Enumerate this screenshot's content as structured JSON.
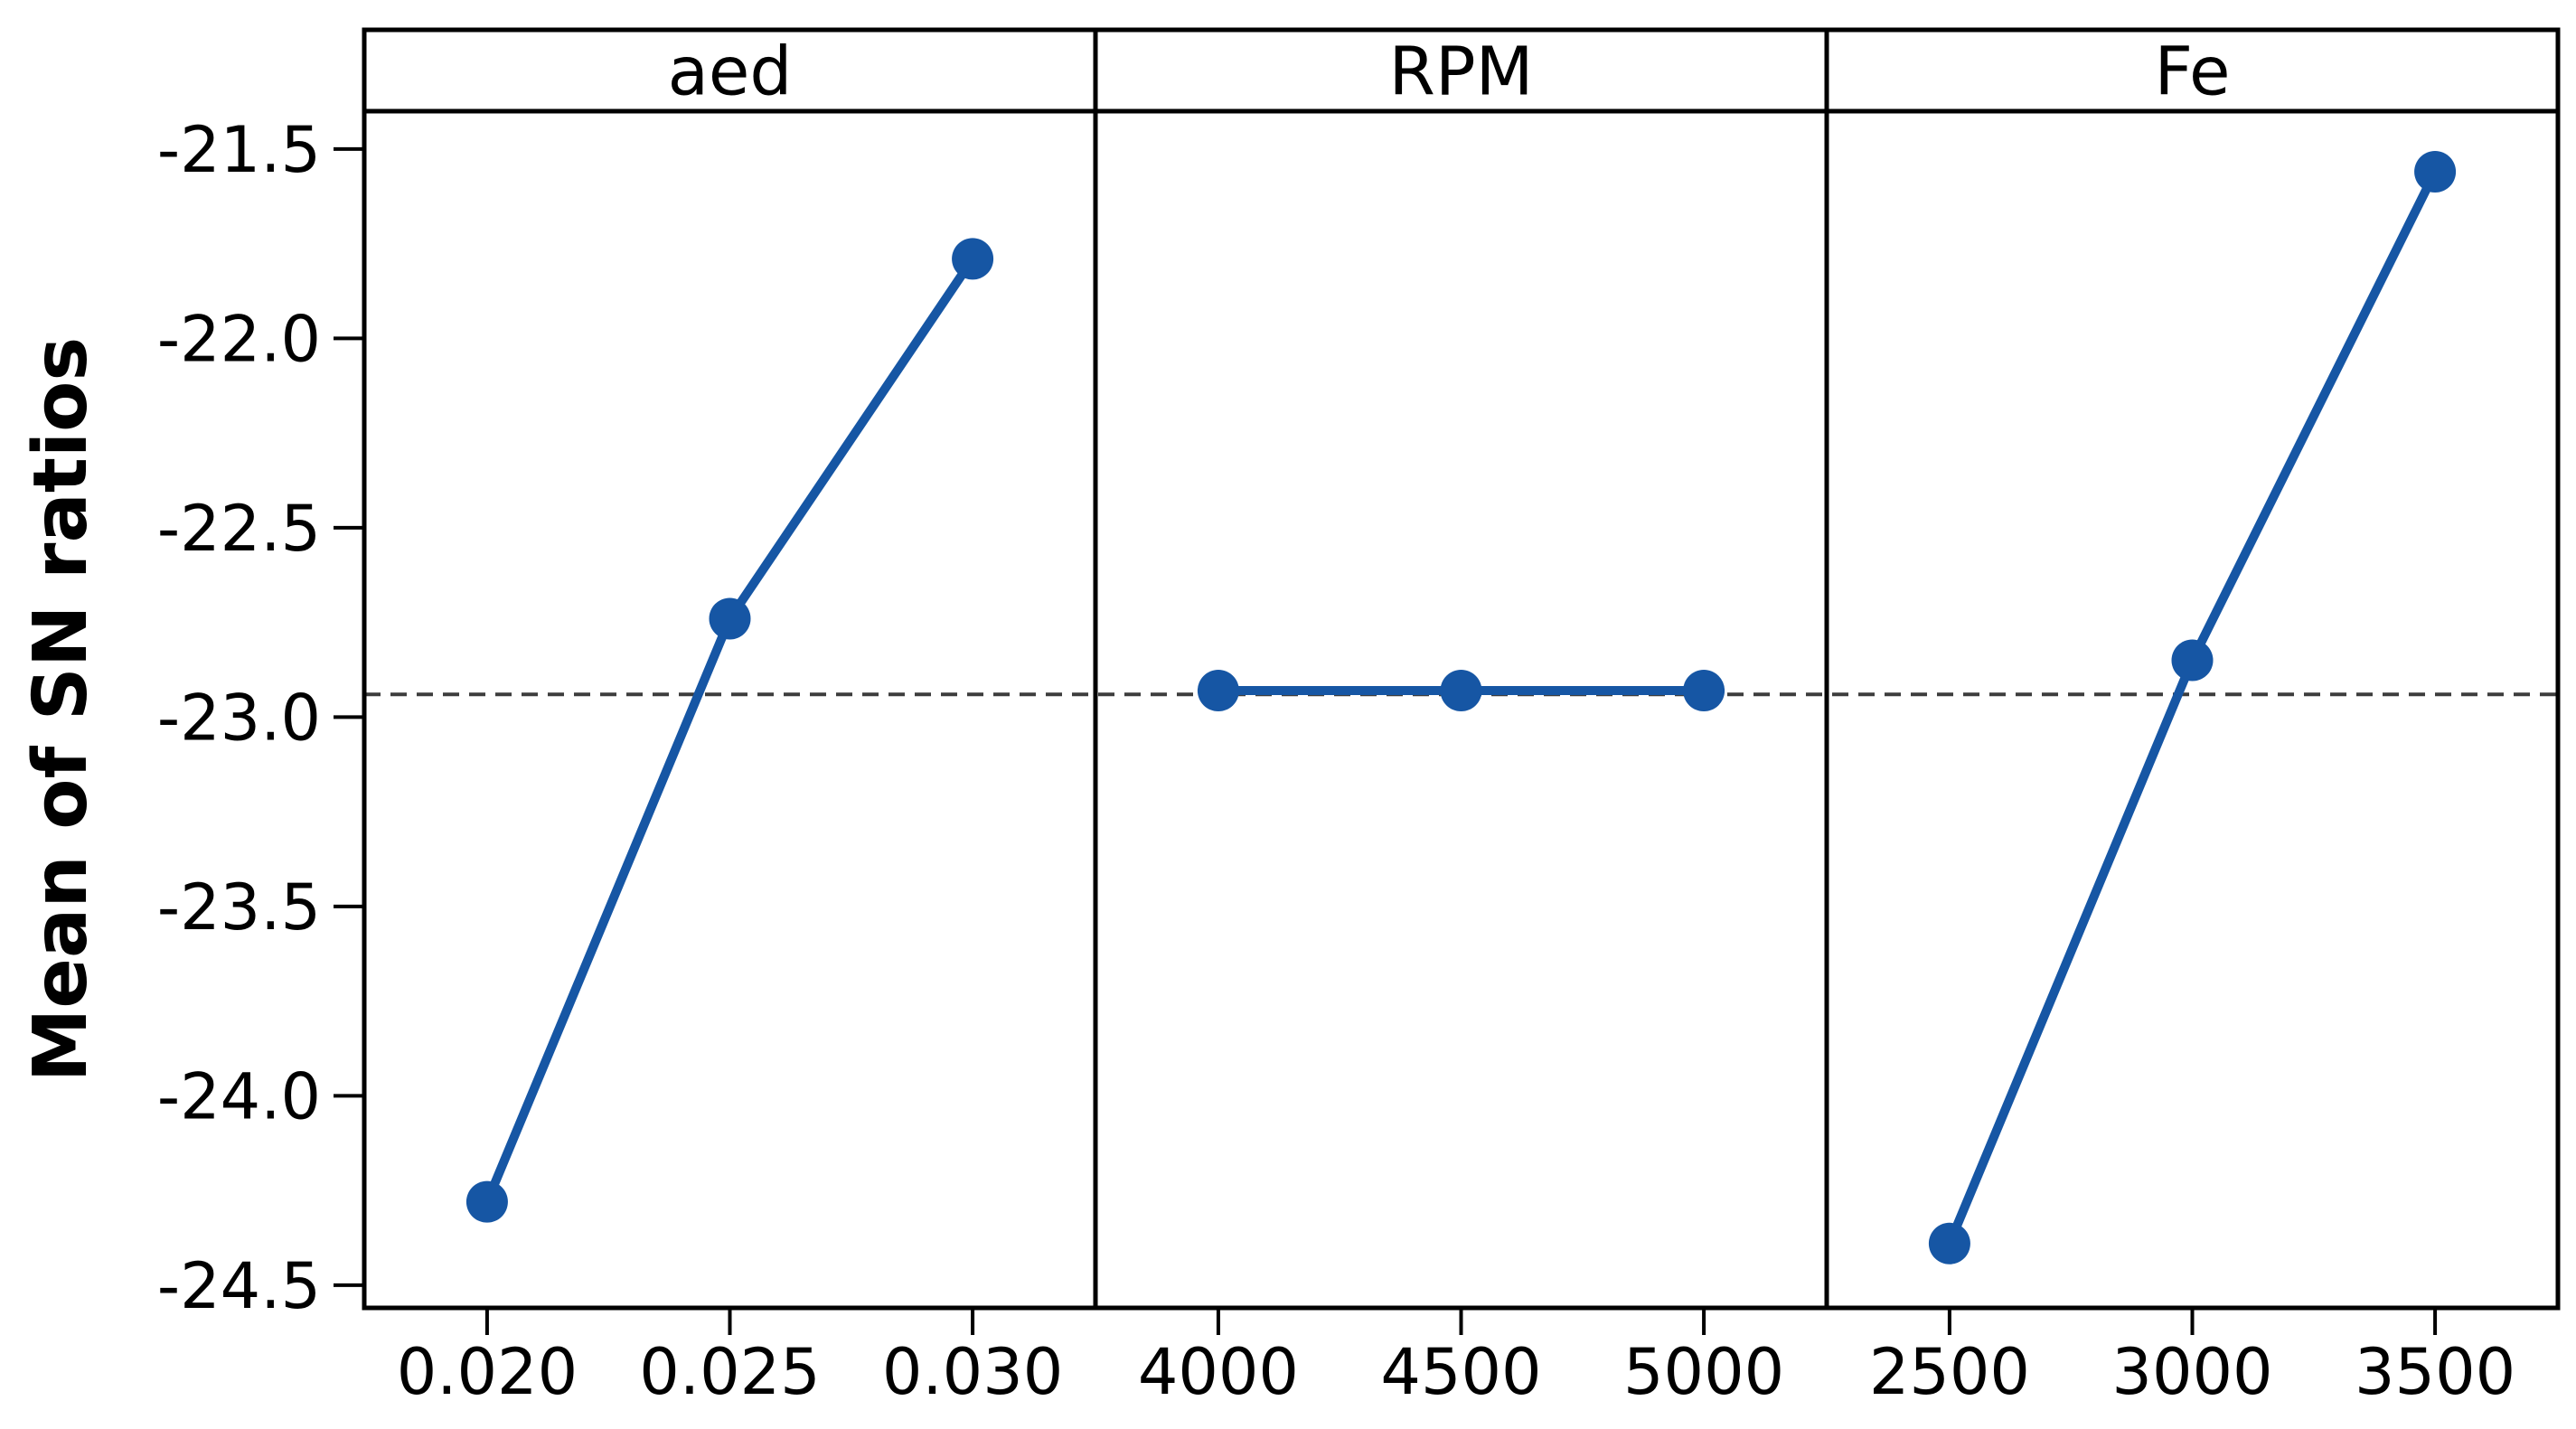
{
  "chart_data": {
    "type": "line",
    "title": "",
    "ylabel": "Mean of SN ratios",
    "xlabel": "",
    "ylim": [
      -24.56,
      -21.4
    ],
    "yticks": [
      -21.5,
      -22.0,
      -22.5,
      -23.0,
      -23.5,
      -24.0,
      -24.5
    ],
    "ytick_labels": [
      "-21.5",
      "-22.0",
      "-22.5",
      "-23.0",
      "-23.5",
      "-24.0",
      "-24.5"
    ],
    "reference_line": -22.94,
    "grid": "off",
    "legend": "none",
    "panels": [
      {
        "label": "aed",
        "categories": [
          "0.020",
          "0.025",
          "0.030"
        ],
        "values": [
          -24.28,
          -22.74,
          -21.79
        ]
      },
      {
        "label": "RPM",
        "categories": [
          "4000",
          "4500",
          "5000"
        ],
        "values": [
          -22.93,
          -22.93,
          -22.93
        ]
      },
      {
        "label": "Fe",
        "categories": [
          "2500",
          "3000",
          "3500"
        ],
        "values": [
          -24.39,
          -22.85,
          -21.56
        ]
      }
    ],
    "colors": {
      "series": "#1656A4",
      "reference": "#3d3d3d",
      "frame": "#000000",
      "text": "#000000",
      "background": "#ffffff"
    }
  }
}
